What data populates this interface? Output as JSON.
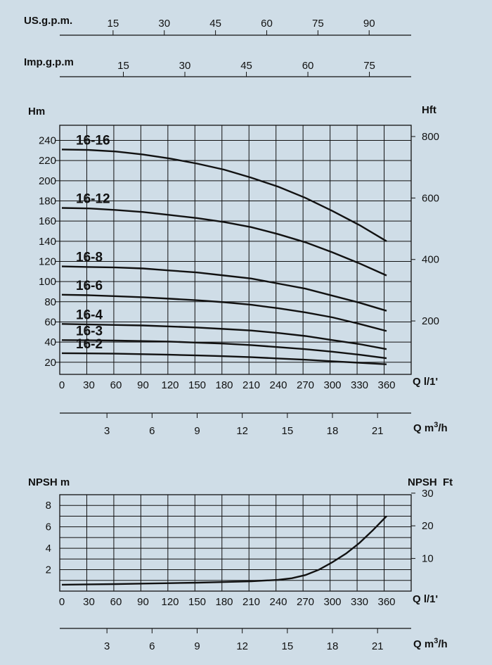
{
  "background_color": "#cfdde7",
  "grid_color": "#111111",
  "curve_color": "#111111",
  "flow_scales": {
    "us_gpm": {
      "label": "US.g.p.m.",
      "ticks": [
        "15",
        "30",
        "45",
        "60",
        "75",
        "90"
      ]
    },
    "imp_gpm": {
      "label": "Imp.g.p.m",
      "ticks": [
        "15",
        "30",
        "45",
        "60",
        "75"
      ]
    },
    "m3h": {
      "label_main": "Q m",
      "label_sup": "3",
      "label_tail": "/h",
      "ticks": [
        "3",
        "6",
        "9",
        "12",
        "15",
        "18",
        "21"
      ]
    }
  },
  "chart_data": [
    {
      "type": "line",
      "ylabel": "Hm",
      "ylabel_right": "Hft",
      "xlabel": "Q l/1'",
      "xlim": [
        0,
        360
      ],
      "ylim": [
        8,
        255
      ],
      "x_ticks": [
        "0",
        "30",
        "60",
        "90",
        "120",
        "150",
        "180",
        "210",
        "240",
        "270",
        "300",
        "330",
        "360"
      ],
      "y_ticks": [
        "20",
        "40",
        "60",
        "80",
        "100",
        "120",
        "140",
        "160",
        "180",
        "200",
        "220",
        "240"
      ],
      "y_right_ticks": [
        "200",
        "400",
        "600",
        "800"
      ],
      "grid": true,
      "series": [
        {
          "name": "16-16",
          "x": [
            0,
            30,
            60,
            90,
            120,
            150,
            180,
            210,
            240,
            270,
            300,
            330,
            360
          ],
          "y": [
            231,
            230.5,
            229,
            226,
            222,
            217,
            211,
            203,
            194,
            183,
            170,
            156,
            140
          ]
        },
        {
          "name": "16-12",
          "x": [
            0,
            30,
            60,
            90,
            120,
            150,
            180,
            210,
            240,
            270,
            300,
            330,
            360
          ],
          "y": [
            173,
            172.5,
            171,
            169,
            166,
            163,
            159,
            154,
            147,
            139,
            129,
            118,
            106
          ]
        },
        {
          "name": "16-8",
          "x": [
            0,
            30,
            60,
            90,
            120,
            150,
            180,
            210,
            240,
            270,
            300,
            330,
            360
          ],
          "y": [
            115,
            114.5,
            114,
            113,
            111,
            109,
            106,
            103,
            98,
            93,
            86,
            79,
            71
          ]
        },
        {
          "name": "16-6",
          "x": [
            0,
            30,
            60,
            90,
            120,
            150,
            180,
            210,
            240,
            270,
            300,
            330,
            360
          ],
          "y": [
            87,
            86.5,
            85.5,
            84.5,
            83,
            81.5,
            79.5,
            77,
            73.5,
            69.5,
            64.5,
            58,
            51
          ]
        },
        {
          "name": "16-4",
          "x": [
            0,
            30,
            60,
            90,
            120,
            150,
            180,
            210,
            240,
            270,
            300,
            330,
            360
          ],
          "y": [
            58,
            57.5,
            57,
            56.5,
            55.5,
            54.5,
            53,
            51.5,
            49,
            46,
            42,
            38,
            33
          ]
        },
        {
          "name": "16-3",
          "x": [
            0,
            30,
            60,
            90,
            120,
            150,
            180,
            210,
            240,
            270,
            300,
            330,
            360
          ],
          "y": [
            42,
            41.8,
            41.5,
            41,
            40.5,
            39.5,
            38.5,
            37,
            35,
            33,
            30.5,
            27.5,
            24
          ]
        },
        {
          "name": "16-2",
          "x": [
            0,
            30,
            60,
            90,
            120,
            150,
            180,
            210,
            240,
            270,
            300,
            330,
            360
          ],
          "y": [
            29,
            28.8,
            28.5,
            28,
            27.5,
            26.8,
            26,
            25,
            23.8,
            22.5,
            21,
            19.5,
            18
          ]
        }
      ]
    },
    {
      "type": "line",
      "ylabel": "NPSH m",
      "ylabel_right": "NPSH  Ft",
      "xlabel": "Q l/1'",
      "xlim": [
        0,
        360
      ],
      "ylim": [
        0,
        9
      ],
      "x_ticks": [
        "0",
        "30",
        "60",
        "90",
        "120",
        "150",
        "180",
        "210",
        "240",
        "270",
        "300",
        "330",
        "360"
      ],
      "y_ticks": [
        "2",
        "4",
        "6",
        "8"
      ],
      "y_right_ticks": [
        "10",
        "20",
        "30"
      ],
      "grid": true,
      "series": [
        {
          "name": "",
          "x": [
            0,
            30,
            60,
            90,
            120,
            150,
            180,
            210,
            240,
            255,
            270,
            285,
            300,
            315,
            330,
            345,
            360
          ],
          "y": [
            0.6,
            0.63,
            0.66,
            0.7,
            0.74,
            0.79,
            0.85,
            0.92,
            1.05,
            1.2,
            1.5,
            2.0,
            2.7,
            3.5,
            4.5,
            5.7,
            7.0
          ]
        }
      ]
    }
  ]
}
